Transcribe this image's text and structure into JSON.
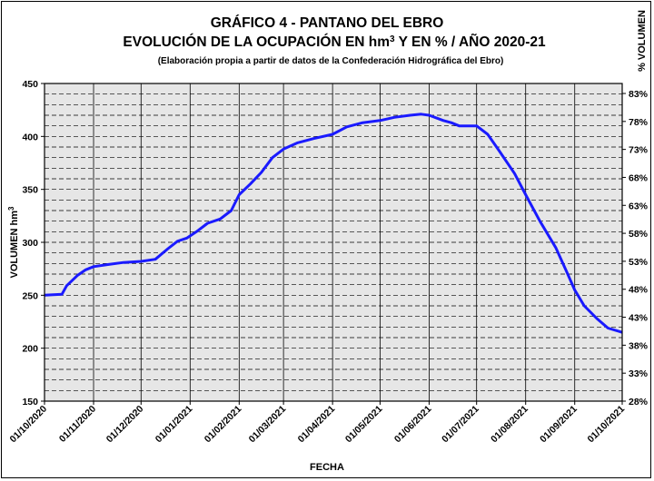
{
  "chart_data": {
    "type": "line",
    "title": "GRÁFICO 4 - PANTANO DEL EBRO",
    "subtitle_parts": [
      "EVOLUCIÓN DE LA OCUPACIÓN EN hm",
      "3",
      " Y EN % / AÑO 2020-21"
    ],
    "note": "(Elaboración propia a partir de datos de la Confederación Hidrográfica del Ebro)",
    "xlabel": "FECHA",
    "ylabel": "VOLUMEN hm",
    "ylabel_sup": "3",
    "y2label": "% VOLUMEN",
    "ylim": [
      150,
      450
    ],
    "yticks": [
      "150",
      "200",
      "250",
      "300",
      "350",
      "400",
      "450"
    ],
    "y2ticks": [
      "28%",
      "33%",
      "38%",
      "43%",
      "48%",
      "53%",
      "58%",
      "63%",
      "68%",
      "73%",
      "78%",
      "83%"
    ],
    "xticks": [
      "01/10/2020",
      "01/11/2020",
      "01/12/2020",
      "01/01/2021",
      "01/02/2021",
      "01/03/2021",
      "01/04/2021",
      "01/05/2021",
      "01/06/2021",
      "01/07/2021",
      "01/08/2021",
      "01/09/2021",
      "01/10/2021"
    ],
    "grid": true,
    "series_color": "#1a1aff",
    "plot_background": "#e6e6e6",
    "series": [
      {
        "x": [
          "2020-10-01",
          "2020-10-12",
          "2020-10-15",
          "2020-10-22",
          "2020-10-27",
          "2020-11-01",
          "2020-11-10",
          "2020-11-20",
          "2020-12-01",
          "2020-12-10",
          "2020-12-18",
          "2020-12-24",
          "2020-12-30",
          "2021-01-05",
          "2021-01-12",
          "2021-01-20",
          "2021-01-27",
          "2021-02-01",
          "2021-02-08",
          "2021-02-15",
          "2021-02-22",
          "2021-03-01",
          "2021-03-10",
          "2021-03-20",
          "2021-04-01",
          "2021-04-10",
          "2021-04-20",
          "2021-05-01",
          "2021-05-10",
          "2021-05-20",
          "2021-05-27",
          "2021-06-01",
          "2021-06-10",
          "2021-06-15",
          "2021-06-20",
          "2021-07-01",
          "2021-07-08",
          "2021-07-15",
          "2021-07-25",
          "2021-08-01",
          "2021-08-10",
          "2021-08-20",
          "2021-08-27",
          "2021-09-01",
          "2021-09-07",
          "2021-09-15",
          "2021-09-22",
          "2021-10-01"
        ],
        "y": [
          250,
          251,
          259,
          269,
          274,
          277,
          279,
          281,
          282,
          284,
          294,
          301,
          304,
          310,
          318,
          322,
          330,
          345,
          355,
          366,
          380,
          388,
          394,
          398,
          402,
          409,
          413,
          415,
          418,
          420,
          421,
          420,
          415,
          413,
          410,
          410,
          402,
          387,
          365,
          345,
          320,
          295,
          272,
          255,
          240,
          228,
          219,
          215
        ]
      }
    ]
  }
}
